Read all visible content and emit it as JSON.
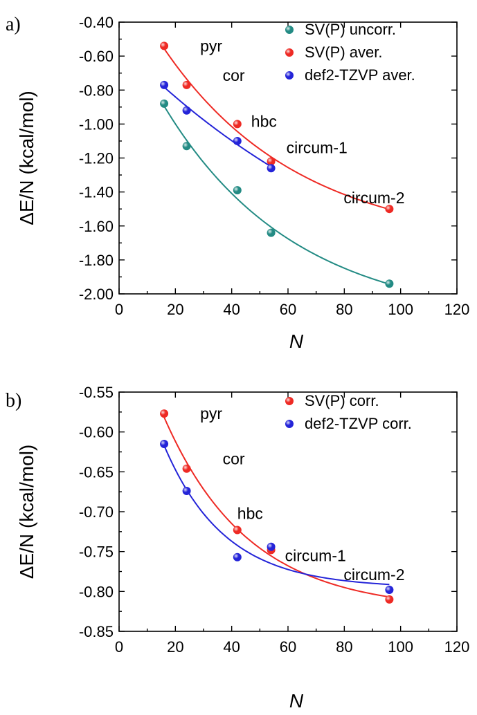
{
  "chart_data": [
    {
      "panel_label": "a)",
      "type": "scatter",
      "xlabel": "N",
      "ylabel": "ΔE/N (kcal/mol)",
      "xlim": [
        0,
        120
      ],
      "ylim": [
        -2.0,
        -0.4
      ],
      "xticks": [
        "0",
        "20",
        "40",
        "60",
        "80",
        "100",
        "120"
      ],
      "yticks": [
        "-2.00",
        "-1.80",
        "-1.60",
        "-1.40",
        "-1.20",
        "-1.00",
        "-0.80",
        "-0.60",
        "-0.40"
      ],
      "legend_position": "top-right",
      "series": [
        {
          "name": "SV(P) uncorr.",
          "color": "#238b84",
          "points": [
            [
              16,
              -0.88
            ],
            [
              24,
              -1.13
            ],
            [
              42,
              -1.39
            ],
            [
              54,
              -1.64
            ],
            [
              96,
              -1.94
            ]
          ]
        },
        {
          "name": "SV(P) aver.",
          "color": "#ee2a24",
          "points": [
            [
              16,
              -0.54
            ],
            [
              24,
              -0.77
            ],
            [
              42,
              -1.0
            ],
            [
              54,
              -1.22
            ],
            [
              96,
              -1.5
            ]
          ]
        },
        {
          "name": "def2-TZVP aver.",
          "color": "#2424d8",
          "points": [
            [
              16,
              -0.77
            ],
            [
              24,
              -0.92
            ],
            [
              42,
              -1.1
            ],
            [
              54,
              -1.26
            ]
          ]
        }
      ],
      "point_labels": [
        {
          "text": "pyr",
          "x": 16,
          "y": -0.54
        },
        {
          "text": "cor",
          "x": 24,
          "y": -0.77
        },
        {
          "text": "hbc",
          "x": 42,
          "y": -1.0
        },
        {
          "text": "circum-1",
          "x": 54,
          "y": -1.22
        },
        {
          "text": "circum-2",
          "x": 96,
          "y": -1.5
        }
      ]
    },
    {
      "panel_label": "b)",
      "type": "scatter",
      "xlabel": "N",
      "ylabel": "ΔE/N (kcal/mol)",
      "xlim": [
        0,
        120
      ],
      "ylim": [
        -0.85,
        -0.55
      ],
      "xticks": [
        "0",
        "20",
        "40",
        "60",
        "80",
        "100",
        "120"
      ],
      "yticks": [
        "-0.85",
        "-0.80",
        "-0.75",
        "-0.70",
        "-0.65",
        "-0.60",
        "-0.55"
      ],
      "legend_position": "top-right",
      "series": [
        {
          "name": "SV(P) corr.",
          "color": "#ee2a24",
          "points": [
            [
              16,
              -0.577
            ],
            [
              24,
              -0.646
            ],
            [
              42,
              -0.723
            ],
            [
              54,
              -0.748
            ],
            [
              96,
              -0.81
            ]
          ]
        },
        {
          "name": "def2-TZVP corr.",
          "color": "#2424d8",
          "points": [
            [
              16,
              -0.615
            ],
            [
              24,
              -0.674
            ],
            [
              42,
              -0.757
            ],
            [
              54,
              -0.744
            ],
            [
              96,
              -0.798
            ]
          ]
        }
      ],
      "point_labels": [
        {
          "text": "pyr",
          "x": 16,
          "y": -0.577
        },
        {
          "text": "cor",
          "x": 24,
          "y": -0.646
        },
        {
          "text": "hbc",
          "x": 42,
          "y": -0.723
        },
        {
          "text": "circum-1",
          "x": 54,
          "y": -0.748
        },
        {
          "text": "circum-2",
          "x": 96,
          "y": -0.798
        }
      ]
    }
  ]
}
